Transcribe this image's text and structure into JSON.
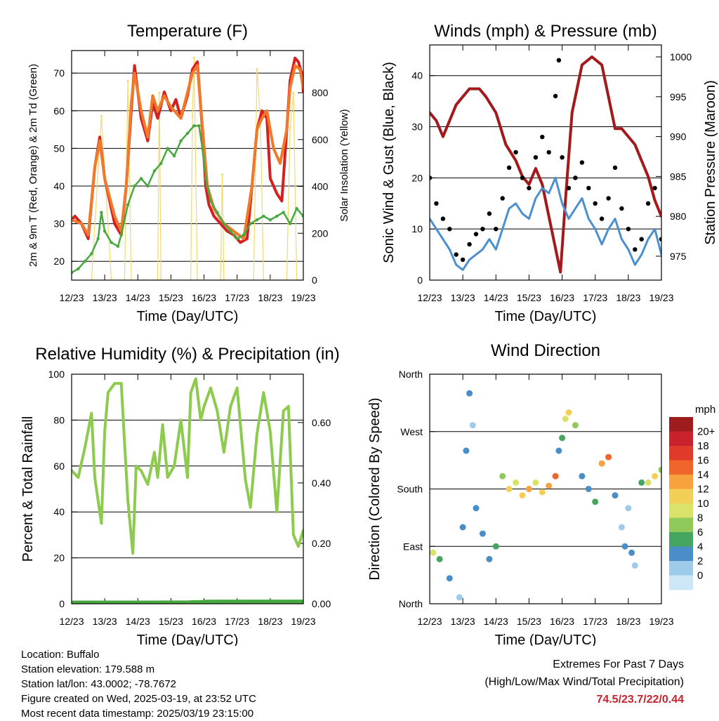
{
  "chart_data": [
    {
      "type": "line",
      "title": "Temperature (F)",
      "xlabel": "Time (Day/UTC)",
      "ylabel": "2m & 9m T (Red, Orange) & 2m Td (Green)",
      "y2label": "Solar Insolation (Yellow)",
      "x_ticks": [
        "12/23",
        "13/23",
        "14/23",
        "15/23",
        "16/23",
        "17/23",
        "18/23",
        "19/23"
      ],
      "xlim": [
        0,
        7
      ],
      "ylim": [
        15,
        76
      ],
      "y_ticks": [
        20,
        30,
        40,
        50,
        60,
        70
      ],
      "y2lim": [
        0,
        980
      ],
      "y2_ticks": [
        0,
        200,
        400,
        600,
        800
      ],
      "grid": "horizontal",
      "series": [
        {
          "name": "2m T",
          "color": "#d42020",
          "x": [
            0,
            0.1,
            0.3,
            0.5,
            0.7,
            0.85,
            1.0,
            1.3,
            1.5,
            1.65,
            1.8,
            1.9,
            2.1,
            2.3,
            2.45,
            2.6,
            2.8,
            3.0,
            3.15,
            3.3,
            3.5,
            3.65,
            3.8,
            3.95,
            4.05,
            4.15,
            4.3,
            4.5,
            4.7,
            4.9,
            5.1,
            5.3,
            5.45,
            5.6,
            5.75,
            5.9,
            6.0,
            6.2,
            6.35,
            6.5,
            6.6,
            6.75,
            6.85,
            6.95,
            7.0
          ],
          "y": [
            31,
            32,
            30,
            26,
            45,
            53,
            42,
            30,
            27,
            40,
            60,
            72,
            58,
            52,
            62,
            58,
            65,
            60,
            63,
            58,
            64,
            71,
            73,
            55,
            40,
            35,
            32,
            30,
            28,
            27,
            25,
            26,
            40,
            55,
            60,
            58,
            42,
            38,
            36,
            55,
            68,
            74,
            73,
            70,
            65
          ]
        },
        {
          "name": "9m T",
          "color": "#f07a2a",
          "x": [
            0,
            0.3,
            0.5,
            0.7,
            0.85,
            1.0,
            1.3,
            1.5,
            1.65,
            1.8,
            1.9,
            2.1,
            2.3,
            2.45,
            2.6,
            2.8,
            3.0,
            3.3,
            3.65,
            3.8,
            3.95,
            4.1,
            4.3,
            4.6,
            4.9,
            5.2,
            5.45,
            5.6,
            5.75,
            5.9,
            6.1,
            6.3,
            6.5,
            6.6,
            6.75,
            6.9,
            7.0
          ],
          "y": [
            31,
            30,
            27,
            45,
            52,
            42,
            32,
            28,
            40,
            62,
            70,
            60,
            53,
            64,
            60,
            64,
            61,
            58,
            70,
            72,
            56,
            40,
            34,
            30,
            28,
            26,
            40,
            55,
            58,
            60,
            50,
            46,
            55,
            66,
            72,
            71,
            66
          ]
        },
        {
          "name": "2m Td",
          "color": "#46a83e",
          "x": [
            0,
            0.2,
            0.4,
            0.6,
            0.8,
            0.9,
            1.0,
            1.2,
            1.4,
            1.5,
            1.7,
            1.9,
            2.1,
            2.3,
            2.5,
            2.7,
            2.9,
            3.1,
            3.3,
            3.5,
            3.7,
            3.85,
            3.95,
            4.05,
            4.2,
            4.4,
            4.6,
            4.8,
            5.0,
            5.2,
            5.4,
            5.6,
            5.8,
            6.0,
            6.2,
            6.4,
            6.6,
            6.8,
            7.0
          ],
          "y": [
            17,
            18,
            20,
            22,
            26,
            33,
            28,
            25,
            24,
            27,
            35,
            40,
            42,
            40,
            44,
            46,
            50,
            48,
            52,
            54,
            56,
            56,
            50,
            42,
            36,
            33,
            30,
            28,
            26,
            27,
            30,
            31,
            32,
            31,
            32,
            33,
            30,
            34,
            32
          ]
        }
      ],
      "secondary_series": [
        {
          "name": "Solar Insolation",
          "color": "#f3d96a",
          "x": [
            0.6,
            0.9,
            1.2,
            1.6,
            1.7,
            1.8,
            2.2,
            2.6,
            2.65,
            2.7,
            3.0,
            3.6,
            3.65,
            3.7,
            3.8,
            4.0,
            4.5,
            4.55,
            4.6,
            5.0,
            5.5,
            5.6,
            5.7,
            5.8,
            6.0,
            6.5,
            6.6,
            6.7,
            6.8,
            7.0
          ],
          "y": [
            0,
            700,
            0,
            0,
            850,
            0,
            0,
            0,
            800,
            0,
            0,
            0,
            700,
            950,
            0,
            0,
            0,
            450,
            0,
            0,
            0,
            900,
            700,
            0,
            0,
            0,
            650,
            800,
            0,
            0
          ]
        }
      ]
    },
    {
      "type": "line",
      "title": "Winds (mph) & Pressure (mb)",
      "xlabel": "Time (Day/UTC)",
      "ylabel": "Sonic Wind & Gust (Blue, Black)",
      "y2label": "Station Pressure (Maroon)",
      "x_ticks": [
        "12/23",
        "13/23",
        "14/23",
        "15/23",
        "16/23",
        "17/23",
        "18/23",
        "19/23"
      ],
      "xlim": [
        0,
        7
      ],
      "ylim": [
        0,
        46
      ],
      "y_ticks": [
        0,
        10,
        20,
        30,
        40
      ],
      "y2lim": [
        972,
        1001.5
      ],
      "y2_ticks": [
        975,
        980,
        985,
        990,
        995,
        1000
      ],
      "grid": "horizontal",
      "series": [
        {
          "name": "Sonic Wind",
          "color": "#4a90d0",
          "x": [
            0,
            0.2,
            0.4,
            0.6,
            0.8,
            1.0,
            1.2,
            1.4,
            1.6,
            1.8,
            2.0,
            2.2,
            2.4,
            2.6,
            2.8,
            3.0,
            3.2,
            3.4,
            3.6,
            3.8,
            4.0,
            4.2,
            4.4,
            4.6,
            4.8,
            5.0,
            5.2,
            5.4,
            5.6,
            5.8,
            6.0,
            6.2,
            6.4,
            6.6,
            6.8,
            7.0
          ],
          "y": [
            12,
            10,
            8,
            6,
            3,
            2,
            4,
            5,
            6,
            8,
            6,
            10,
            14,
            15,
            13,
            12,
            16,
            18,
            17,
            20,
            15,
            12,
            14,
            16,
            12,
            10,
            7,
            10,
            12,
            8,
            6,
            3,
            5,
            8,
            10,
            5
          ]
        },
        {
          "name": "Gust",
          "color": "#000000",
          "x": [
            0,
            0.2,
            0.4,
            0.6,
            0.8,
            1.0,
            1.2,
            1.4,
            1.6,
            1.8,
            2.0,
            2.2,
            2.4,
            2.6,
            2.8,
            3.0,
            3.2,
            3.4,
            3.6,
            3.8,
            3.9,
            4.0,
            4.2,
            4.4,
            4.6,
            4.8,
            5.0,
            5.2,
            5.4,
            5.6,
            5.8,
            6.0,
            6.2,
            6.4,
            6.6,
            6.8,
            7.0
          ],
          "y": [
            20,
            15,
            12,
            10,
            5,
            4,
            7,
            9,
            10,
            13,
            10,
            16,
            22,
            25,
            20,
            18,
            24,
            28,
            25,
            36,
            43,
            24,
            18,
            20,
            23,
            18,
            15,
            12,
            16,
            22,
            14,
            10,
            6,
            8,
            15,
            18,
            8
          ]
        }
      ],
      "secondary_series": [
        {
          "name": "Station Pressure",
          "color": "#a3191c",
          "x": [
            0,
            0.2,
            0.4,
            0.6,
            0.8,
            1.0,
            1.2,
            1.5,
            1.7,
            2.0,
            2.3,
            2.6,
            2.8,
            3.0,
            3.2,
            3.4,
            3.6,
            3.8,
            3.95,
            4.1,
            4.3,
            4.6,
            4.9,
            5.2,
            5.4,
            5.6,
            5.8,
            6.0,
            6.2,
            6.4,
            6.6,
            6.8,
            7.0
          ],
          "y": [
            993,
            992,
            990,
            992,
            994,
            995,
            996,
            996,
            995,
            993,
            989,
            987,
            985,
            984,
            986,
            984,
            980,
            976,
            973,
            982,
            993,
            999,
            1000,
            999,
            995,
            991,
            991,
            990,
            989,
            987,
            985,
            982,
            980
          ]
        }
      ]
    },
    {
      "type": "line",
      "title": "Relative Humidity (%) & Precipitation (in)",
      "xlabel": "Time (Day/UTC)",
      "ylabel": "Percent & Total Rainfall",
      "x_ticks": [
        "12/23",
        "13/23",
        "14/23",
        "15/23",
        "16/23",
        "17/23",
        "18/23",
        "19/23"
      ],
      "xlim": [
        0,
        7
      ],
      "ylim": [
        0,
        100
      ],
      "y_ticks": [
        0,
        20,
        40,
        60,
        80,
        100
      ],
      "y2lim": [
        0,
        0.76
      ],
      "y2_ticks": [
        "0.00",
        "0.20",
        "0.40",
        "0.60"
      ],
      "grid": "horizontal",
      "series": [
        {
          "name": "Relative Humidity",
          "color": "#8ccb4e",
          "x": [
            0,
            0.2,
            0.4,
            0.6,
            0.7,
            0.9,
            1.0,
            1.1,
            1.3,
            1.5,
            1.6,
            1.7,
            1.85,
            1.95,
            2.1,
            2.3,
            2.5,
            2.6,
            2.75,
            2.9,
            3.1,
            3.3,
            3.5,
            3.6,
            3.75,
            3.9,
            4.0,
            4.2,
            4.4,
            4.6,
            4.8,
            5.0,
            5.1,
            5.25,
            5.4,
            5.6,
            5.8,
            6.0,
            6.2,
            6.4,
            6.55,
            6.7,
            6.85,
            7.0
          ],
          "y": [
            58,
            55,
            68,
            83,
            55,
            35,
            75,
            92,
            96,
            96,
            70,
            45,
            22,
            60,
            58,
            52,
            66,
            55,
            78,
            55,
            60,
            80,
            55,
            92,
            98,
            80,
            86,
            94,
            84,
            66,
            86,
            94,
            78,
            54,
            42,
            74,
            92,
            75,
            40,
            84,
            86,
            30,
            25,
            32
          ]
        },
        {
          "name": "Total Precipitation",
          "color": "#46a83e",
          "x": [
            0,
            2.6,
            2.7,
            3.5,
            3.6,
            3.7,
            3.8,
            3.9,
            4.0,
            4.1,
            4.2,
            4.3,
            4.5,
            7.0
          ],
          "y": [
            0,
            0,
            0.04,
            0.04,
            0.12,
            0.18,
            0.19,
            0.2,
            0.33,
            0.4,
            0.41,
            0.44,
            0.44,
            0.44
          ]
        }
      ]
    },
    {
      "type": "scatter",
      "title": "Wind Direction",
      "xlabel": "Time (Day/UTC)",
      "ylabel": "Direction (Colored By Speed)",
      "x_ticks": [
        "12/23",
        "13/23",
        "14/23",
        "15/23",
        "16/23",
        "17/23",
        "18/23",
        "19/23"
      ],
      "xlim": [
        0,
        7
      ],
      "y_tick_labels": [
        "North",
        "East",
        "South",
        "West",
        "North"
      ],
      "ylim": [
        0,
        360
      ],
      "grid": "horizontal",
      "legend": {
        "title": "mph",
        "labels": [
          "20+",
          "18",
          "16",
          "14",
          "12",
          "10",
          "8",
          "6",
          "4",
          "2",
          "0"
        ],
        "colors": [
          "#9e1b1e",
          "#c8232c",
          "#e03a2a",
          "#f0652b",
          "#f7a23e",
          "#f2cf56",
          "#d9e36a",
          "#8fc95a",
          "#46a560",
          "#4a8ec9",
          "#9ecbe9",
          "#cde7f6"
        ]
      },
      "x": [
        0.1,
        0.3,
        0.6,
        0.9,
        1.0,
        1.1,
        1.2,
        1.3,
        1.4,
        1.6,
        1.8,
        2.0,
        2.2,
        2.4,
        2.6,
        2.8,
        3.0,
        3.2,
        3.4,
        3.6,
        3.8,
        3.9,
        4.0,
        4.1,
        4.2,
        4.4,
        4.6,
        4.8,
        5.0,
        5.2,
        5.4,
        5.6,
        5.8,
        5.9,
        6.0,
        6.1,
        6.2,
        6.4,
        6.6,
        6.8,
        7.0
      ],
      "y": [
        80,
        70,
        40,
        10,
        120,
        240,
        330,
        280,
        150,
        110,
        70,
        90,
        200,
        180,
        190,
        170,
        180,
        190,
        175,
        185,
        200,
        240,
        260,
        290,
        300,
        280,
        200,
        180,
        160,
        220,
        230,
        170,
        120,
        90,
        150,
        80,
        60,
        190,
        190,
        200,
        210
      ],
      "speed": [
        10,
        6,
        4,
        2,
        4,
        4,
        4,
        2,
        4,
        4,
        4,
        6,
        8,
        12,
        10,
        12,
        14,
        10,
        12,
        14,
        16,
        4,
        6,
        10,
        12,
        8,
        4,
        4,
        6,
        14,
        16,
        4,
        2,
        4,
        2,
        4,
        2,
        6,
        10,
        12,
        8
      ]
    }
  ],
  "info": {
    "location": "Location: Buffalo",
    "elevation": "Station elevation: 179.588 m",
    "latlon": "Station lat/lon: 43.0002; -78.7672",
    "created": "Figure created on Wed, 2025-03-19, at 23:52 UTC",
    "recent": "Most recent data timestamp: 2025/03/19 23:15:00"
  },
  "extremes": {
    "title": "Extremes For Past 7 Days",
    "subtitle": "(High/Low/Max Wind/Total Precipitation)",
    "values": "74.5/23.7/22/0.44"
  }
}
